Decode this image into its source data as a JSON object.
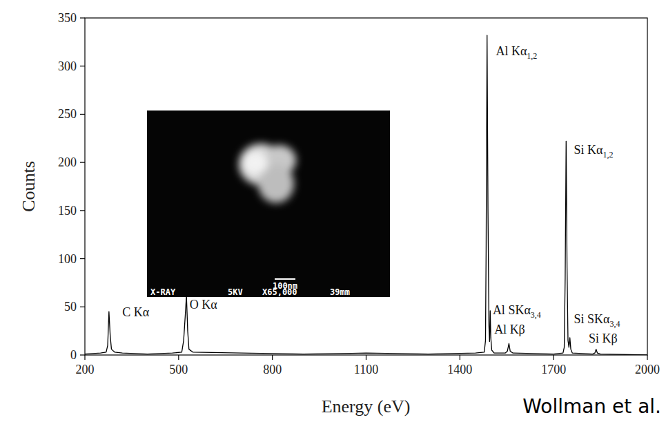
{
  "chart_data": {
    "type": "line",
    "x_label": "Energy (eV)",
    "y_label": "Counts",
    "xlim": [
      200,
      2000
    ],
    "xticks": [
      200,
      500,
      800,
      1100,
      1400,
      1700,
      2000
    ],
    "ylim": [
      0,
      350
    ],
    "yticks": [
      0,
      50,
      100,
      150,
      200,
      250,
      300,
      350
    ],
    "color": "#000000",
    "line_style": "solid",
    "x": [
      200,
      250,
      268,
      273,
      277,
      281,
      285,
      295,
      320,
      400,
      480,
      510,
      516,
      521,
      525,
      529,
      533,
      545,
      700,
      900,
      1100,
      1300,
      1450,
      1478,
      1482,
      1484,
      1487,
      1490,
      1493,
      1495,
      1497,
      1499,
      1502,
      1510,
      1545,
      1552,
      1557,
      1561,
      1570,
      1700,
      1730,
      1734,
      1737,
      1740,
      1743,
      1746,
      1749,
      1752,
      1755,
      1760,
      1825,
      1832,
      1836,
      1840,
      1850,
      2000
    ],
    "values": [
      1,
      2,
      3,
      10,
      45,
      20,
      6,
      3,
      2,
      1,
      2,
      3,
      15,
      40,
      62,
      25,
      6,
      3,
      2,
      1,
      2,
      1,
      2,
      3,
      15,
      110,
      332,
      150,
      30,
      14,
      46,
      18,
      5,
      2,
      2,
      4,
      12,
      4,
      2,
      1,
      2,
      8,
      80,
      222,
      90,
      15,
      8,
      18,
      6,
      2,
      1,
      2,
      6,
      2,
      1,
      0
    ],
    "annotations": [
      {
        "text": "C Kα",
        "x": 320,
        "y": 40
      },
      {
        "text": "O Kα",
        "x": 535,
        "y": 48
      },
      {
        "text": "Al Kα1,2",
        "x": 1515,
        "y": 311
      },
      {
        "text": "Al SKα3,4",
        "x": 1505,
        "y": 42
      },
      {
        "text": "Al Kβ",
        "x": 1510,
        "y": 22
      },
      {
        "text": "Si Kα1,2",
        "x": 1765,
        "y": 209
      },
      {
        "text": "Si SKα3,4",
        "x": 1765,
        "y": 33
      },
      {
        "text": "Si Kβ",
        "x": 1812,
        "y": 13
      }
    ],
    "inset": {
      "scale_bar_label": "100nm",
      "caption": [
        "X-RAY",
        "5KV",
        "X65,000",
        "39mm"
      ]
    },
    "source": "Wollman et al."
  }
}
